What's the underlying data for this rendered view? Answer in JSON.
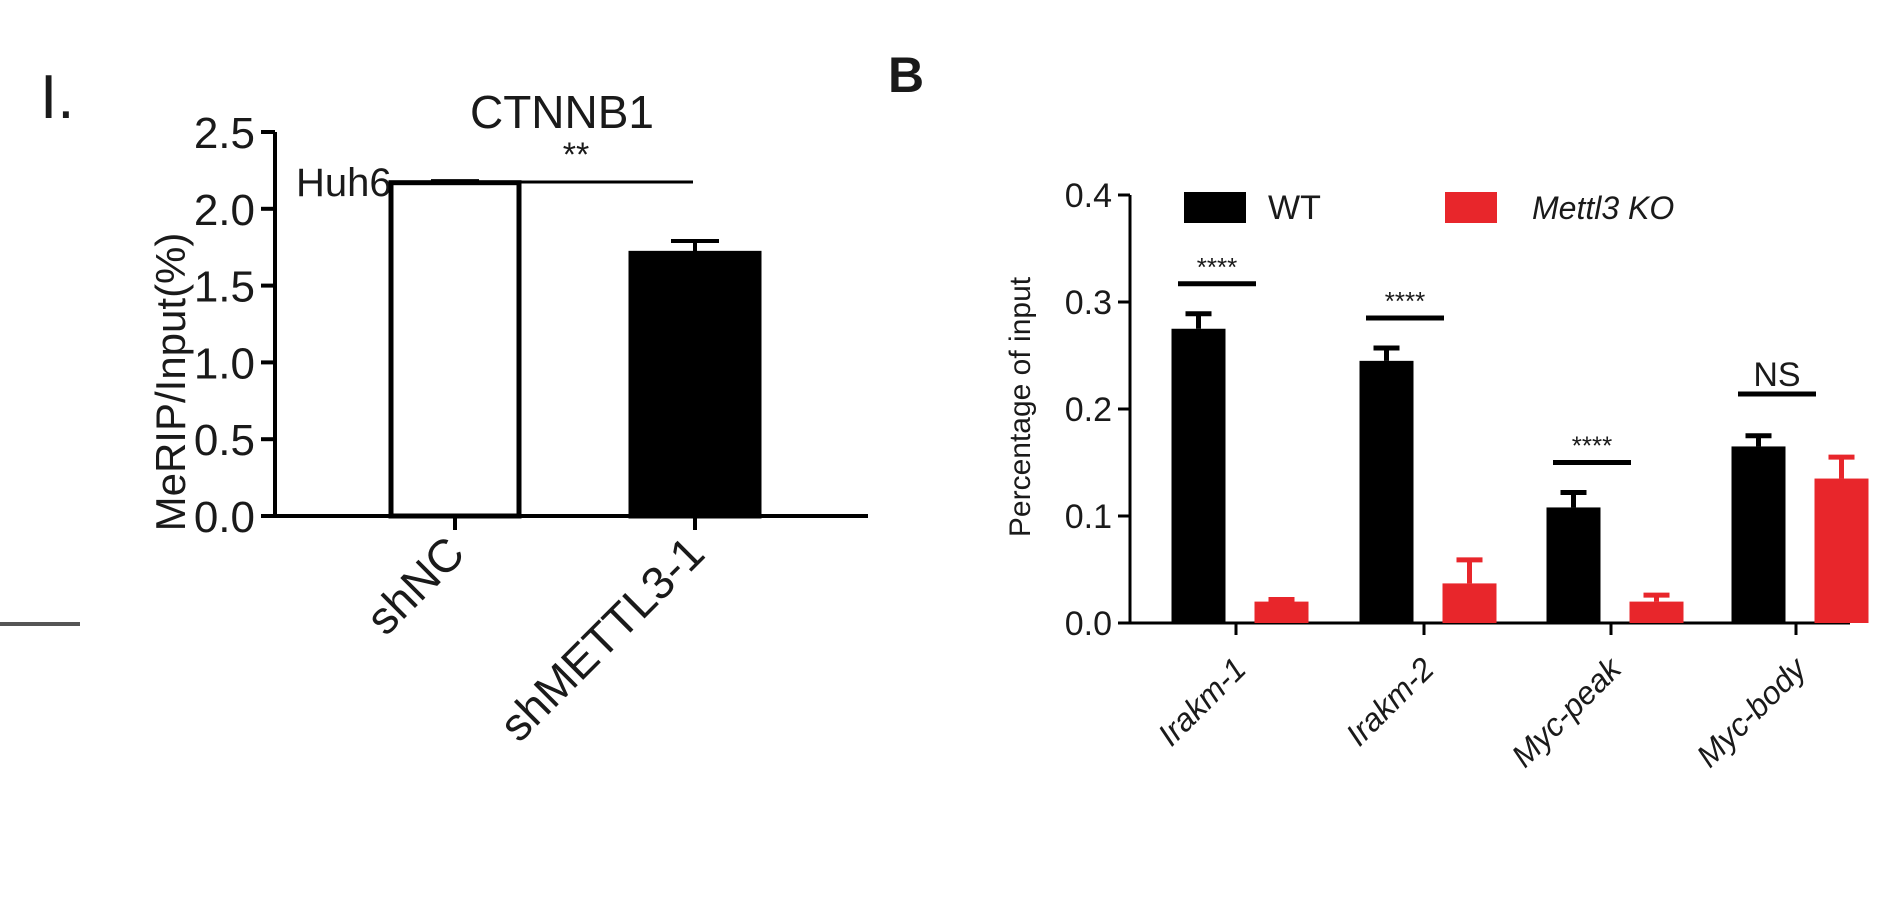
{
  "chart_data": [
    {
      "panel_label": "I.",
      "type": "bar",
      "title": "CTNNB1",
      "annotation": "Huh6",
      "ylabel": "MeRIP/Input(%)",
      "xlabel": "",
      "ylim": [
        0,
        2.5
      ],
      "yticks": [
        "0.0",
        "0.5",
        "1.0",
        "1.5",
        "2.0",
        "2.5"
      ],
      "categories": [
        "shNC",
        "shMETTL3-1"
      ],
      "values": [
        2.17,
        1.71
      ],
      "errors": [
        0.01,
        0.08
      ],
      "fills": [
        "#ffffff",
        "#000000"
      ],
      "significance": "**",
      "grid": false
    },
    {
      "panel_label": "B",
      "type": "bar",
      "title": "",
      "ylabel": "Percentage of input",
      "xlabel": "",
      "ylim": [
        0,
        0.4
      ],
      "yticks": [
        "0.0",
        "0.1",
        "0.2",
        "0.3",
        "0.4"
      ],
      "categories": [
        "Irakm-1",
        "Irakm-2",
        "Myc-peak",
        "Myc-body"
      ],
      "legend_position": "top",
      "series": [
        {
          "name": "WT",
          "color": "#000000",
          "values": [
            0.275,
            0.245,
            0.108,
            0.165
          ],
          "errors": [
            0.014,
            0.012,
            0.014,
            0.01
          ]
        },
        {
          "name": "Mettl3 KO",
          "color": "#e8262b",
          "values": [
            0.02,
            0.037,
            0.02,
            0.135
          ],
          "errors": [
            0.002,
            0.022,
            0.006,
            0.02
          ]
        }
      ],
      "significance": [
        "****",
        "****",
        "****",
        "NS"
      ],
      "grid": false
    }
  ]
}
